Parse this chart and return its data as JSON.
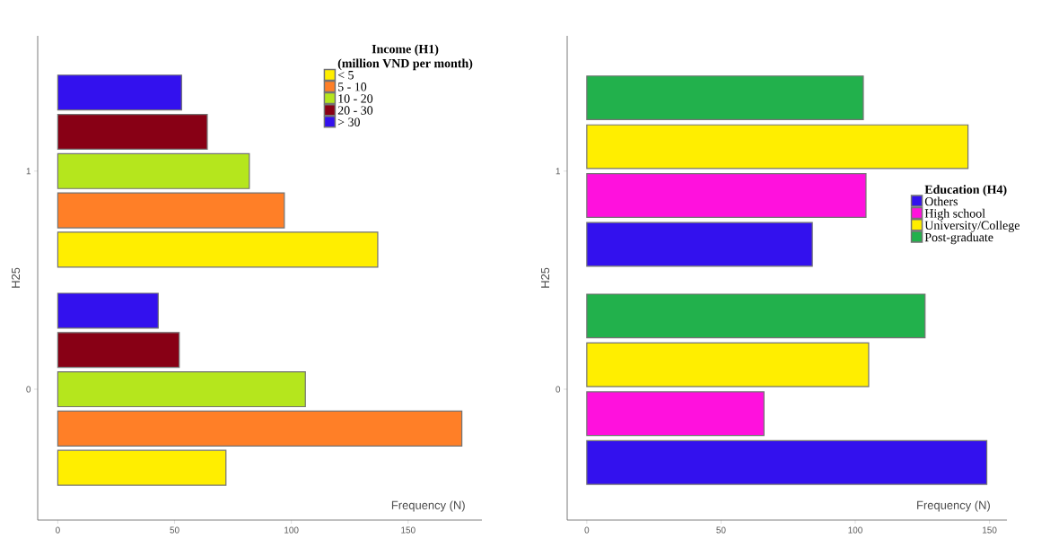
{
  "chart_data": [
    {
      "type": "bar",
      "orientation": "horizontal",
      "legend_title": "**Income (H1)**\n**(million VND per month)**",
      "ylabel": "H25",
      "xlabel": "Frequency (N)",
      "categories": [
        "1",
        "0"
      ],
      "xlim": [
        -8.6,
        181.6
      ],
      "xticks": [
        0,
        50,
        100,
        150
      ],
      "legend": "top right",
      "series": [
        {
          "name": "< 5",
          "color": "#ffee00",
          "values": [
            137,
            72
          ]
        },
        {
          "name": "5 - 10",
          "color": "#ff7f27",
          "values": [
            97,
            173
          ]
        },
        {
          "name": "10 - 20",
          "color": "#b5e61d",
          "values": [
            82,
            106
          ]
        },
        {
          "name": "20 - 30",
          "color": "#880015",
          "values": [
            64,
            52
          ]
        },
        {
          "name": "> 30",
          "color": "#3311ee",
          "values": [
            53,
            43
          ]
        }
      ]
    },
    {
      "type": "bar",
      "orientation": "horizontal",
      "legend_title": "**Education (H4)**",
      "ylabel": "H25",
      "xlabel": "Frequency (N)",
      "categories": [
        "1",
        "0"
      ],
      "xlim": [
        -7.3,
        156.5
      ],
      "xticks": [
        0,
        50,
        100,
        150
      ],
      "legend": "right",
      "series": [
        {
          "name": "Others",
          "color": "#3311ee",
          "values": [
            84,
            149
          ]
        },
        {
          "name": "High school",
          "color": "#ff11dd",
          "values": [
            104,
            66
          ]
        },
        {
          "name": "University/College",
          "color": "#ffee00",
          "values": [
            142,
            105
          ]
        },
        {
          "name": "Post-graduate",
          "color": "#22b14c",
          "values": [
            103,
            126
          ]
        }
      ]
    }
  ]
}
